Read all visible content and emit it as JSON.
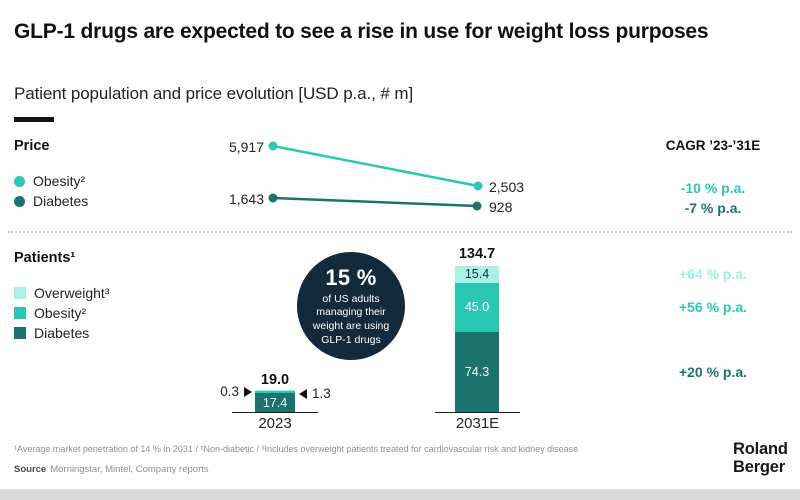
{
  "header": {
    "title": "GLP-1 drugs are expected to see a rise in use for weight loss purposes",
    "subtitle": "Patient population and price evolution [USD p.a., # m]"
  },
  "price": {
    "section_label": "Price",
    "cagr_header": "CAGR ’23-’31E",
    "legend": [
      {
        "label": "Obesity²",
        "color": "#2BC7B5"
      },
      {
        "label": "Diabetes",
        "color": "#1A746D"
      }
    ],
    "lines": [
      {
        "name": "Obesity",
        "start": "5,917",
        "end": "2,503",
        "cagr": "-10 % p.a."
      },
      {
        "name": "Diabetes",
        "start": "1,643",
        "end": "928",
        "cagr": "-7 % p.a."
      }
    ]
  },
  "patients": {
    "section_label": "Patients¹",
    "legend": [
      {
        "label": "Overweight³",
        "color": "#A7F2E4"
      },
      {
        "label": "Obesity²",
        "color": "#2BC7B5"
      },
      {
        "label": "Diabetes",
        "color": "#1A746D"
      }
    ],
    "cagr": [
      {
        "label": "+64 % p.a."
      },
      {
        "label": "+56 % p.a."
      },
      {
        "label": "+20 % p.a."
      }
    ],
    "bars": {
      "b2023": {
        "total": "19.0",
        "overweight": "0.3",
        "obesity": "1.3",
        "diabetes": "17.4",
        "x_label": "2023"
      },
      "b2031": {
        "total": "134.7",
        "overweight": "15.4",
        "obesity": "45.0",
        "diabetes": "74.3",
        "x_label": "2031E"
      }
    }
  },
  "callout": {
    "headline": "15 %",
    "body": "of US adults\nmanaging their\nweight are using\nGLP-1 drugs"
  },
  "footer": {
    "footnote": "¹Average market penetration of 14 % in 2031 / ²Non-diabetic / ³Includes overweight patients treated for cardiovascular risk and kidney disease",
    "source_label": "Source",
    "source_text": "Morningstar, Mintel, Company reports",
    "logo_line1": "Roland",
    "logo_line2": "Berger"
  },
  "colors": {
    "mint": "#A7F2E4",
    "teal": "#2BC7B5",
    "dark_teal": "#1A746D",
    "navy_circle": "#13293C",
    "footnote_gray": "#8F8F8F"
  },
  "chart_data": [
    {
      "type": "line",
      "title": "Price [USD p.a.]",
      "x": [
        "2023",
        "2031E"
      ],
      "series": [
        {
          "name": "Obesity",
          "values": [
            5917,
            2503
          ],
          "cagr": "-10 % p.a.",
          "color": "#2BC7B5"
        },
        {
          "name": "Diabetes",
          "values": [
            1643,
            928
          ],
          "cagr": "-7 % p.a.",
          "color": "#1A746D"
        }
      ],
      "grid": false,
      "legend_position": "left"
    },
    {
      "type": "bar",
      "stacked": true,
      "title": "Patients [# m]",
      "categories": [
        "2023",
        "2031E"
      ],
      "series": [
        {
          "name": "Overweight",
          "values": [
            0.3,
            15.4
          ],
          "cagr": "+64 % p.a.",
          "color": "#A7F2E4"
        },
        {
          "name": "Obesity",
          "values": [
            1.3,
            45.0
          ],
          "cagr": "+56 % p.a.",
          "color": "#2BC7B5"
        },
        {
          "name": "Diabetes",
          "values": [
            17.4,
            74.3
          ],
          "cagr": "+20 % p.a.",
          "color": "#1A746D"
        }
      ],
      "totals": [
        19.0,
        134.7
      ],
      "grid": false
    }
  ]
}
